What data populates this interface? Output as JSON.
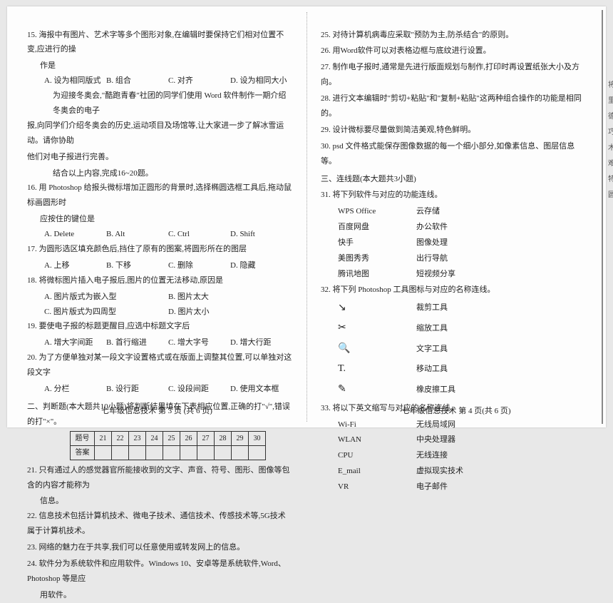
{
  "left": {
    "q15": "15. 海报中有图片、艺术字等多个图形对象,在编辑时要保持它们相对位置不变,应进行的操",
    "q15b": "作是",
    "q15o": [
      "A. 设为相同版式",
      "B. 组合",
      "C. 对齐",
      "D. 设为相同大小"
    ],
    "intro1": "为迎接冬奥会,\"酷跑青春\"社团的同学们使用 Word 软件制作一期介绍冬奥会的电子",
    "intro2": "报,向同学们介绍冬奥会的历史,运动项目及场馆等,让大家进一步了解冰雪运动。请你协助",
    "intro3": "他们对电子报进行完善。",
    "intro4": "结合以上内容,完成16~20题。",
    "q16": "16. 用 Photoshop 给报头微标增加正圆形的背景时,选择椭圆选框工具后,拖动鼠标画圆形时",
    "q16b": "应按住的键位是",
    "q16o": [
      "A. Delete",
      "B. Alt",
      "C. Ctrl",
      "D. Shift"
    ],
    "q17": "17. 为圆形选区填充颜色后,挡住了原有的图案,将圆形所在的图层",
    "q17o": [
      "A. 上移",
      "B. 下移",
      "C. 删除",
      "D. 隐藏"
    ],
    "q18": "18. 将微标图片插入电子报后,图片的位置无法移动,原因是",
    "q18o1": [
      "A. 图片版式为嵌入型",
      "B. 图片太大"
    ],
    "q18o2": [
      "C. 图片版式为四周型",
      "D. 图片太小"
    ],
    "q19": "19. 要使电子报的标题更醒目,应选中标题文字后",
    "q19o": [
      "A. 增大字间距",
      "B. 首行缩进",
      "C. 增大字号",
      "D. 增大行距"
    ],
    "q20": "20. 为了方便单独对某一段文字设置格式或在版面上调整其位置,可以单独对这段文字",
    "q20o": [
      "A. 分栏",
      "B. 设行距",
      "C. 设段间距",
      "D. 使用文本框"
    ],
    "sec2": "二、判断题(本大题共10小题)将判断结果填在下表相应位置,正确的打\"√\",错误的打\"×\"。",
    "thdr": [
      "题号",
      "21",
      "22",
      "23",
      "24",
      "25",
      "26",
      "27",
      "28",
      "29",
      "30"
    ],
    "trow": "答案",
    "q21": "21. 只有通过人的感觉器官所能接收到的文字、声音、符号、图形、图像等包含的内容才能称为",
    "q21b": "信息。",
    "q22": "22. 信息技术包括计算机技术、微电子技术、通信技术、传感技术等,5G技术属于计算机技术。",
    "q23": "23. 网络的魅力在于共享,我们可以任意使用或转发网上的信息。",
    "q24": "24. 软件分为系统软件和应用软件。Windows 10、安卓等是系统软件,Word、Photoshop 等是应",
    "q24b": "用软件。",
    "footer": "七年级信息技术  第 3 页 (共 6 页)"
  },
  "right": {
    "q25": "25. 对待计算机病毒应采取\"预防为主,防杀结合\"的原则。",
    "q26": "26. 用Word软件可以对表格边框与底纹进行设置。",
    "q27": "27. 制作电子报时,通常是先进行版面规划与制作,打印时再设置纸张大小及方向。",
    "q28": "28. 进行文本编辑时\"剪切+粘贴\"和\"复制+粘贴\"这两种组合操作的功能是相同的。",
    "q29": "29. 设计微标要尽量做到简洁美观,特色鲜明。",
    "q30": "30. psd 文件格式能保存图像数据的每一个细小部分,如像素信息、图层信息等。",
    "sec3": "三、连线题(本大题共3小题)",
    "q31": "31. 将下列软件与对应的功能连线。",
    "p31": [
      [
        "WPS Office",
        "云存储"
      ],
      [
        "百度网盘",
        "办公软件"
      ],
      [
        "快手",
        "图像处理"
      ],
      [
        "美图秀秀",
        "出行导航"
      ],
      [
        "腾讯地图",
        "短视频分享"
      ]
    ],
    "q32": "32. 将下列 Photoshop 工具图标与对应的名称连线。",
    "p32": [
      [
        "↘",
        "裁剪工具"
      ],
      [
        "✂",
        "缩放工具"
      ],
      [
        "🔍",
        "文字工具"
      ],
      [
        "T.",
        "移动工具"
      ],
      [
        "✎",
        "橡皮擦工具"
      ]
    ],
    "q33": "33. 将以下英文缩写与对应的名称连线。",
    "p33": [
      [
        "Wi-Fi",
        "无线局域网"
      ],
      [
        "WLAN",
        "中央处理器"
      ],
      [
        "CPU",
        "无线连接"
      ],
      [
        "E_mail",
        "虚拟现实技术"
      ],
      [
        "VR",
        "电子邮件"
      ]
    ],
    "footer": "七年级信息技术  第 4 页(共 6 页)"
  },
  "sidetab": [
    "将",
    "里",
    "德",
    "巧",
    "木",
    "难",
    "特",
    "圆"
  ]
}
